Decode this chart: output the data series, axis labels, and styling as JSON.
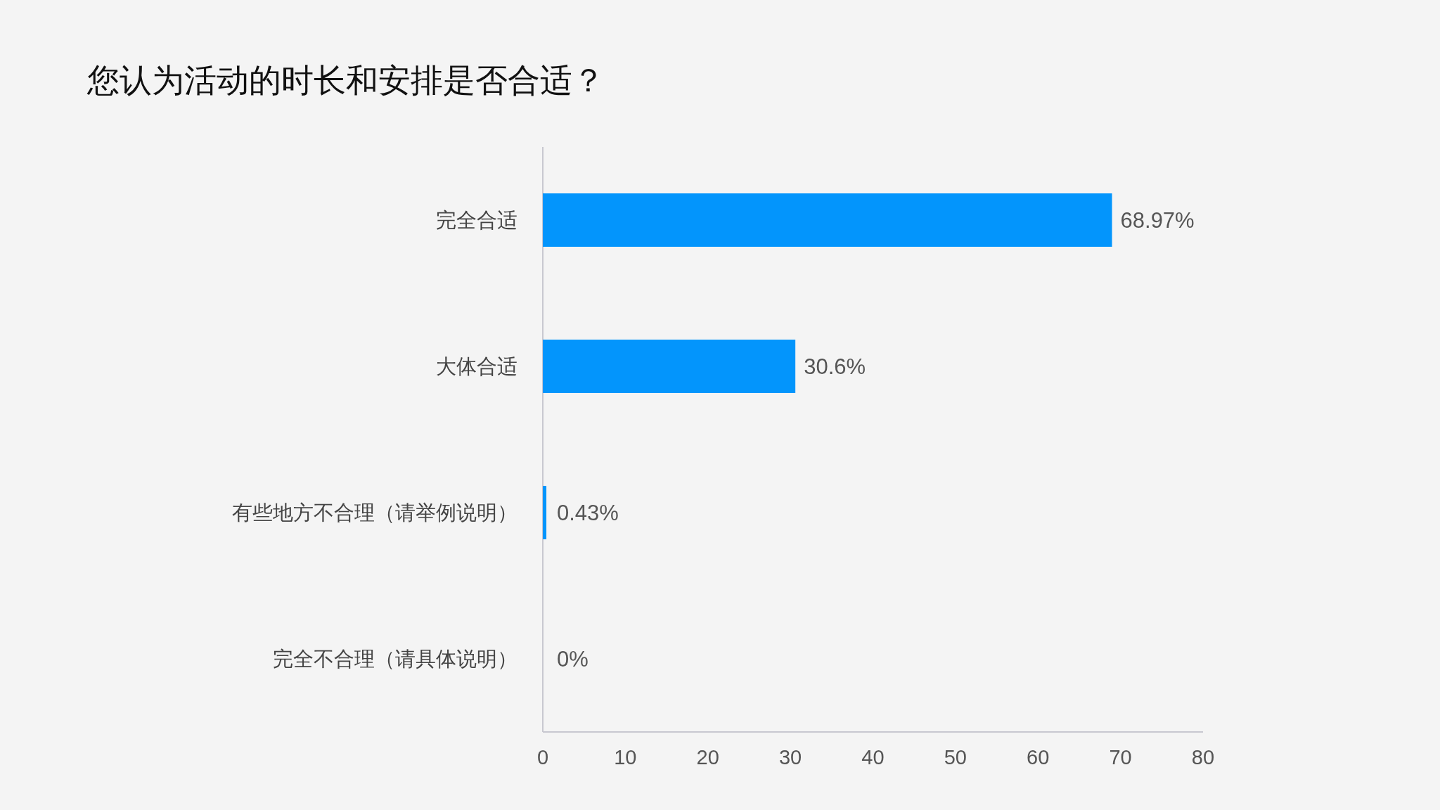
{
  "chart_data": {
    "type": "bar",
    "orientation": "horizontal",
    "title": "您认为活动的时长和安排是否合适？",
    "categories": [
      "完全合适",
      "大体合适",
      "有些地方不合理（请举例说明）",
      "完全不合理（请具体说明）"
    ],
    "values": [
      68.97,
      30.6,
      0.43,
      0
    ],
    "value_labels": [
      "68.97%",
      "30.6%",
      "0.43%",
      "0%"
    ],
    "color": "#0395fc",
    "xlim": [
      0,
      80
    ],
    "xticks": [
      0,
      10,
      20,
      30,
      40,
      50,
      60,
      70,
      80
    ]
  }
}
